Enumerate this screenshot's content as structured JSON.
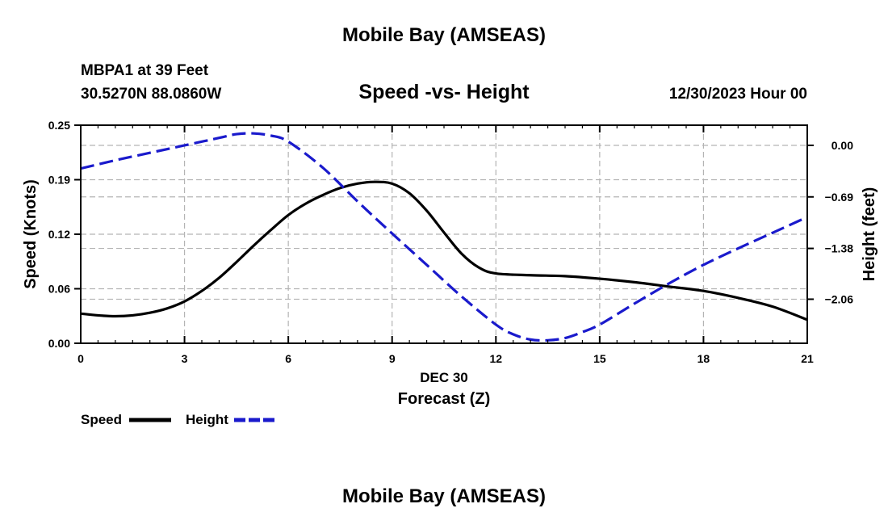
{
  "header": {
    "title": "Mobile Bay (AMSEAS)",
    "station": "MBPA1 at 39 Feet",
    "coords": "30.5270N  88.0860W",
    "chart_title": "Speed -vs- Height",
    "datetime": "12/30/2023 Hour 00"
  },
  "footer": {
    "title": "Mobile Bay (AMSEAS)"
  },
  "legend": {
    "speed_label": "Speed",
    "height_label": "Height"
  },
  "colors": {
    "speed": "#000000",
    "height": "#1a1acc",
    "grid": "#b4b4b4"
  },
  "chart_data": {
    "type": "line",
    "title": "Speed -vs- Height",
    "xlabel": "Forecast (Z)",
    "xsublabel": "DEC 30",
    "ylabel": "Speed (Knots)",
    "y2label": "Height (feet)",
    "xlim": [
      0,
      21
    ],
    "ylim": [
      0,
      0.25
    ],
    "y2lim": [
      -2.65,
      0.27
    ],
    "xticks": [
      0,
      3,
      6,
      9,
      12,
      15,
      18,
      21
    ],
    "xtick_labels": [
      "0",
      "3",
      "6",
      "9",
      "12",
      "15",
      "18",
      "21"
    ],
    "yticks": [
      0,
      0.0625,
      0.125,
      0.1875,
      0.25
    ],
    "ytick_labels": [
      "0.00",
      "0.06",
      "0.12",
      "0.19",
      "0.25"
    ],
    "y2ticks": [
      0.0,
      -0.69,
      -1.38,
      -2.06
    ],
    "y2tick_labels": [
      "0.00",
      "−0.69",
      "−1.38",
      "−2.06"
    ],
    "grid": true,
    "series": [
      {
        "name": "Speed",
        "axis": "left",
        "style": "solid",
        "x": [
          0,
          0.5,
          1,
          1.5,
          2,
          2.5,
          3,
          3.5,
          4,
          4.5,
          5,
          5.5,
          6,
          6.5,
          7,
          7.5,
          8,
          8.5,
          9,
          9.5,
          10,
          10.5,
          11,
          11.5,
          12,
          13,
          14,
          15,
          16,
          17,
          18,
          19,
          20,
          21
        ],
        "values": [
          0.034,
          0.032,
          0.031,
          0.032,
          0.035,
          0.04,
          0.048,
          0.06,
          0.075,
          0.093,
          0.112,
          0.13,
          0.147,
          0.16,
          0.17,
          0.178,
          0.183,
          0.185,
          0.183,
          0.172,
          0.152,
          0.127,
          0.103,
          0.087,
          0.08,
          0.078,
          0.077,
          0.074,
          0.07,
          0.065,
          0.06,
          0.052,
          0.042,
          0.027
        ]
      },
      {
        "name": "Height",
        "axis": "right",
        "style": "dashed",
        "x": [
          0,
          1,
          2,
          3,
          4,
          4.5,
          5,
          5.5,
          6,
          7,
          8,
          9,
          10,
          11,
          12,
          12.5,
          13,
          13.5,
          14,
          14.5,
          15,
          16,
          17,
          18,
          19,
          20,
          21
        ],
        "values": [
          -0.31,
          -0.2,
          -0.1,
          0.0,
          0.1,
          0.15,
          0.16,
          0.13,
          0.05,
          -0.3,
          -0.75,
          -1.18,
          -1.6,
          -2.02,
          -2.4,
          -2.53,
          -2.6,
          -2.61,
          -2.58,
          -2.5,
          -2.4,
          -2.12,
          -1.85,
          -1.6,
          -1.38,
          -1.17,
          -0.96
        ]
      }
    ]
  }
}
